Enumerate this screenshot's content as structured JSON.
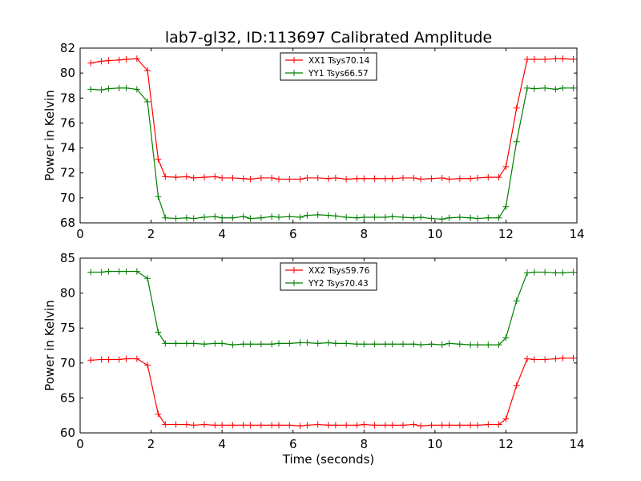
{
  "figure": {
    "title": "lab7-gl32, ID:113697 Calibrated Amplitude"
  },
  "chart_data": [
    {
      "type": "line",
      "title": "lab7-gl32, ID:113697 Calibrated Amplitude",
      "xlabel": "",
      "ylabel": "Power in Kelvin",
      "xlim": [
        0,
        14
      ],
      "ylim": [
        68,
        82
      ],
      "xticks": [
        0,
        2,
        4,
        6,
        8,
        10,
        12,
        14
      ],
      "yticks": [
        68,
        70,
        72,
        74,
        76,
        78,
        80,
        82
      ],
      "legend_position": "top-center",
      "x": [
        0.3,
        0.6,
        0.8,
        1.1,
        1.3,
        1.6,
        1.9,
        2.2,
        2.4,
        2.7,
        3.0,
        3.2,
        3.5,
        3.8,
        4.0,
        4.3,
        4.6,
        4.8,
        5.1,
        5.4,
        5.6,
        5.9,
        6.2,
        6.4,
        6.7,
        7.0,
        7.2,
        7.5,
        7.8,
        8.0,
        8.3,
        8.6,
        8.8,
        9.1,
        9.4,
        9.6,
        9.9,
        10.2,
        10.4,
        10.7,
        11.0,
        11.2,
        11.5,
        11.8,
        12.0,
        12.3,
        12.6,
        12.8,
        13.1,
        13.4,
        13.6,
        13.9
      ],
      "series": [
        {
          "name": "XX1 Tsys70.14",
          "color": "#ff0000",
          "values": [
            80.8,
            80.95,
            81.0,
            81.05,
            81.1,
            81.15,
            80.2,
            73.1,
            71.7,
            71.65,
            71.7,
            71.6,
            71.65,
            71.7,
            71.6,
            71.6,
            71.55,
            71.5,
            71.6,
            71.6,
            71.5,
            71.5,
            71.5,
            71.6,
            71.6,
            71.55,
            71.6,
            71.5,
            71.55,
            71.55,
            71.55,
            71.55,
            71.55,
            71.6,
            71.6,
            71.5,
            71.55,
            71.6,
            71.5,
            71.55,
            71.55,
            71.6,
            71.65,
            71.65,
            72.5,
            77.2,
            81.1,
            81.1,
            81.1,
            81.15,
            81.15,
            81.1
          ]
        },
        {
          "name": "YY1 Tsys66.57",
          "color": "#008000",
          "values": [
            78.7,
            78.65,
            78.75,
            78.8,
            78.8,
            78.7,
            77.7,
            70.1,
            68.4,
            68.35,
            68.4,
            68.35,
            68.45,
            68.5,
            68.4,
            68.4,
            68.5,
            68.35,
            68.4,
            68.5,
            68.45,
            68.5,
            68.45,
            68.6,
            68.65,
            68.6,
            68.55,
            68.45,
            68.4,
            68.45,
            68.45,
            68.45,
            68.5,
            68.45,
            68.4,
            68.45,
            68.35,
            68.3,
            68.4,
            68.45,
            68.4,
            68.35,
            68.4,
            68.4,
            69.3,
            74.5,
            78.8,
            78.75,
            78.8,
            78.7,
            78.8,
            78.8
          ]
        }
      ]
    },
    {
      "type": "line",
      "title": "",
      "xlabel": "Time (seconds)",
      "ylabel": "Power in Kelvin",
      "xlim": [
        0,
        14
      ],
      "ylim": [
        60,
        85
      ],
      "xticks": [
        0,
        2,
        4,
        6,
        8,
        10,
        12,
        14
      ],
      "yticks": [
        60,
        65,
        70,
        75,
        80,
        85
      ],
      "legend_position": "top-center",
      "x": [
        0.3,
        0.6,
        0.8,
        1.1,
        1.3,
        1.6,
        1.9,
        2.2,
        2.4,
        2.7,
        3.0,
        3.2,
        3.5,
        3.8,
        4.0,
        4.3,
        4.6,
        4.8,
        5.1,
        5.4,
        5.6,
        5.9,
        6.2,
        6.4,
        6.7,
        7.0,
        7.2,
        7.5,
        7.8,
        8.0,
        8.3,
        8.6,
        8.8,
        9.1,
        9.4,
        9.6,
        9.9,
        10.2,
        10.4,
        10.7,
        11.0,
        11.2,
        11.5,
        11.8,
        12.0,
        12.3,
        12.6,
        12.8,
        13.1,
        13.4,
        13.6,
        13.9
      ],
      "series": [
        {
          "name": "XX2 Tsys59.76",
          "color": "#ff0000",
          "values": [
            70.4,
            70.5,
            70.5,
            70.5,
            70.6,
            70.6,
            69.7,
            62.7,
            61.2,
            61.2,
            61.2,
            61.1,
            61.2,
            61.1,
            61.1,
            61.1,
            61.1,
            61.1,
            61.1,
            61.1,
            61.1,
            61.1,
            61.0,
            61.1,
            61.2,
            61.1,
            61.1,
            61.1,
            61.1,
            61.2,
            61.1,
            61.1,
            61.1,
            61.1,
            61.2,
            61.0,
            61.1,
            61.1,
            61.1,
            61.1,
            61.1,
            61.1,
            61.2,
            61.2,
            62.0,
            66.8,
            70.6,
            70.5,
            70.5,
            70.6,
            70.7,
            70.7
          ]
        },
        {
          "name": "YY2 Tsys70.43",
          "color": "#008000",
          "values": [
            83.0,
            83.0,
            83.1,
            83.1,
            83.1,
            83.1,
            82.1,
            74.4,
            72.8,
            72.8,
            72.8,
            72.8,
            72.7,
            72.8,
            72.8,
            72.6,
            72.7,
            72.7,
            72.7,
            72.7,
            72.8,
            72.8,
            72.9,
            72.9,
            72.8,
            72.9,
            72.8,
            72.8,
            72.7,
            72.7,
            72.7,
            72.7,
            72.7,
            72.7,
            72.7,
            72.6,
            72.7,
            72.6,
            72.8,
            72.7,
            72.6,
            72.6,
            72.6,
            72.6,
            73.6,
            78.9,
            82.9,
            83.0,
            83.0,
            82.9,
            82.9,
            83.0
          ]
        }
      ]
    }
  ]
}
